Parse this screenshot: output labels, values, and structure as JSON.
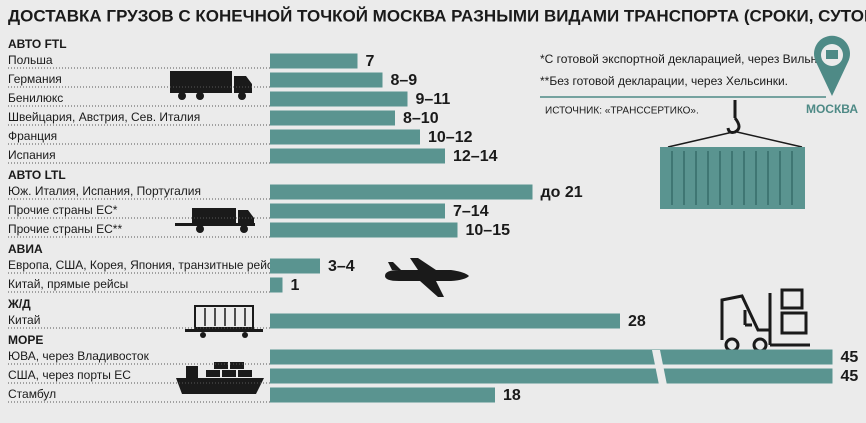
{
  "chart_data": {
    "type": "bar",
    "title": "ДОСТАВКА ГРУЗОВ С КОНЕЧНОЙ ТОЧКОЙ МОСКВА РАЗНЫМИ ВИДАМИ ТРАНСПОРТА (СРОКИ, СУТОК)",
    "color": "#5a9490",
    "notes": [
      "*С готовой экспортной декларацией, через Вильнюс.",
      "**Без готовой декларации, через Хельсинки."
    ],
    "source": "ИСТОЧНИК: «ТРАНССЕРТИКО».",
    "city": "МОСКВА",
    "groups": [
      {
        "name": "АВТО FTL",
        "categories": [
          "Польша",
          "Германия",
          "Бенилюкс",
          "Швейцария, Австрия, Сев. Италия",
          "Франция",
          "Испания"
        ],
        "values": [
          7,
          9,
          11,
          10,
          12,
          14
        ],
        "value_labels": [
          "7",
          "8–9",
          "9–11",
          "8–10",
          "10–12",
          "12–14"
        ]
      },
      {
        "name": "АВТО LTL",
        "categories": [
          "Юж. Италия, Испания, Португалия",
          "Прочие страны ЕС*",
          "Прочие страны ЕС**"
        ],
        "values": [
          21,
          14,
          15
        ],
        "value_labels": [
          "до 21",
          "7–14",
          "10–15"
        ]
      },
      {
        "name": "АВИА",
        "categories": [
          "Европа, США, Корея, Япония, транзитные рейсы",
          "Китай, прямые рейсы"
        ],
        "values": [
          4,
          1
        ],
        "value_labels": [
          "3–4",
          "1"
        ]
      },
      {
        "name": "Ж/Д",
        "categories": [
          "Китай"
        ],
        "values": [
          28
        ]
      },
      {
        "name": "МОРЕ",
        "categories": [
          "ЮВА, через Владивосток",
          "США, через порты ЕС",
          "Стамбул"
        ],
        "values": [
          45,
          45,
          18
        ]
      }
    ]
  }
}
